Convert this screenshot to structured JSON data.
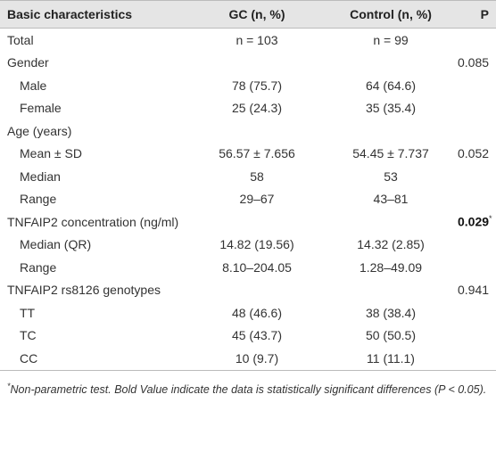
{
  "table": {
    "header": [
      "Basic characteristics",
      "GC (n, %)",
      "Control (n, %)",
      "P"
    ],
    "items": [
      {
        "label": "Total",
        "gc": "n = 103",
        "control": "n = 99"
      },
      {
        "label": "Gender",
        "p": "0.085",
        "rows": [
          {
            "label": "Male",
            "gc": "78 (75.7)",
            "control": "64 (64.6)"
          },
          {
            "label": "Female",
            "gc": "25 (24.3)",
            "control": "35 (35.4)"
          }
        ]
      },
      {
        "label": "Age (years)",
        "rows": [
          {
            "label": "Mean ± SD",
            "gc": "56.57 ± 7.656",
            "control": "54.45 ± 7.737",
            "p": "0.052"
          },
          {
            "label": "Median",
            "gc": "58",
            "control": "53"
          },
          {
            "label": "Range",
            "gc": "29–67",
            "control": "43–81"
          }
        ]
      },
      {
        "label": "TNFAIP2 concentration (ng/ml)",
        "p": "0.029",
        "p_mark": "*",
        "p_bold": true,
        "rows": [
          {
            "label": "Median (QR)",
            "gc": "14.82 (19.56)",
            "control": "14.32 (2.85)"
          },
          {
            "label": "Range",
            "gc": "8.10–204.05",
            "control": "1.28–49.09"
          }
        ]
      },
      {
        "label": "TNFAIP2 rs8126 genotypes",
        "p": "0.941",
        "rows": [
          {
            "label": "TT",
            "gc": "48 (46.6)",
            "control": "38 (38.4)"
          },
          {
            "label": "TC",
            "gc": "45 (43.7)",
            "control": "50 (50.5)"
          },
          {
            "label": "CC",
            "gc": "10 (9.7)",
            "control": "11 (11.1)"
          }
        ]
      }
    ]
  },
  "footnote": {
    "mark": "*",
    "text": "Non-parametric test. Bold Value indicate the data is statistically significant differences (P < 0.05)."
  }
}
